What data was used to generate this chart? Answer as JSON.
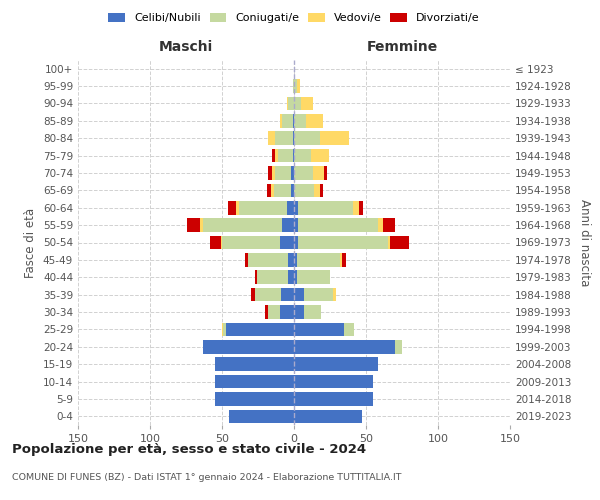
{
  "age_groups": [
    "100+",
    "95-99",
    "90-94",
    "85-89",
    "80-84",
    "75-79",
    "70-74",
    "65-69",
    "60-64",
    "55-59",
    "50-54",
    "45-49",
    "40-44",
    "35-39",
    "30-34",
    "25-29",
    "20-24",
    "15-19",
    "10-14",
    "5-9",
    "0-4"
  ],
  "birth_years": [
    "≤ 1923",
    "1924-1928",
    "1929-1933",
    "1934-1938",
    "1939-1943",
    "1944-1948",
    "1949-1953",
    "1954-1958",
    "1959-1963",
    "1964-1968",
    "1969-1973",
    "1974-1978",
    "1979-1983",
    "1984-1988",
    "1989-1993",
    "1994-1998",
    "1999-2003",
    "2004-2008",
    "2009-2013",
    "2014-2018",
    "2019-2023"
  ],
  "maschi": {
    "celibi": [
      0,
      0,
      0,
      1,
      1,
      1,
      2,
      2,
      5,
      8,
      10,
      4,
      4,
      9,
      10,
      47,
      63,
      55,
      55,
      55,
      45
    ],
    "coniugati": [
      0,
      1,
      4,
      7,
      12,
      10,
      11,
      12,
      33,
      55,
      40,
      28,
      22,
      18,
      8,
      2,
      0,
      0,
      0,
      0,
      0
    ],
    "vedovi": [
      0,
      0,
      1,
      2,
      5,
      2,
      2,
      2,
      2,
      2,
      1,
      0,
      0,
      0,
      0,
      1,
      0,
      0,
      0,
      0,
      0
    ],
    "divorziati": [
      0,
      0,
      0,
      0,
      0,
      2,
      3,
      3,
      6,
      9,
      7,
      2,
      1,
      3,
      2,
      0,
      0,
      0,
      0,
      0,
      0
    ]
  },
  "femmine": {
    "nubili": [
      0,
      0,
      0,
      0,
      0,
      0,
      0,
      0,
      3,
      3,
      3,
      2,
      2,
      7,
      7,
      35,
      70,
      58,
      55,
      55,
      47
    ],
    "coniugate": [
      0,
      2,
      5,
      8,
      18,
      12,
      13,
      14,
      38,
      55,
      62,
      30,
      23,
      20,
      12,
      7,
      5,
      0,
      0,
      0,
      0
    ],
    "vedove": [
      0,
      2,
      8,
      12,
      20,
      12,
      8,
      4,
      4,
      4,
      2,
      1,
      0,
      2,
      0,
      0,
      0,
      0,
      0,
      0,
      0
    ],
    "divorziate": [
      0,
      0,
      0,
      0,
      0,
      0,
      2,
      2,
      3,
      8,
      13,
      3,
      0,
      0,
      0,
      0,
      0,
      0,
      0,
      0,
      0
    ]
  },
  "colors": {
    "celibi": "#4472c4",
    "coniugati": "#c5d9a0",
    "vedovi": "#ffd966",
    "divorziati": "#cc0000"
  },
  "title": "Popolazione per età, sesso e stato civile - 2024",
  "subtitle": "COMUNE DI FUNES (BZ) - Dati ISTAT 1° gennaio 2024 - Elaborazione TUTTITALIA.IT",
  "xlabel_maschi": "Maschi",
  "xlabel_femmine": "Femmine",
  "ylabel": "Fasce di età",
  "ylabel_right": "Anni di nascita",
  "xlim": 150,
  "background_color": "#ffffff",
  "grid_color": "#cccccc"
}
